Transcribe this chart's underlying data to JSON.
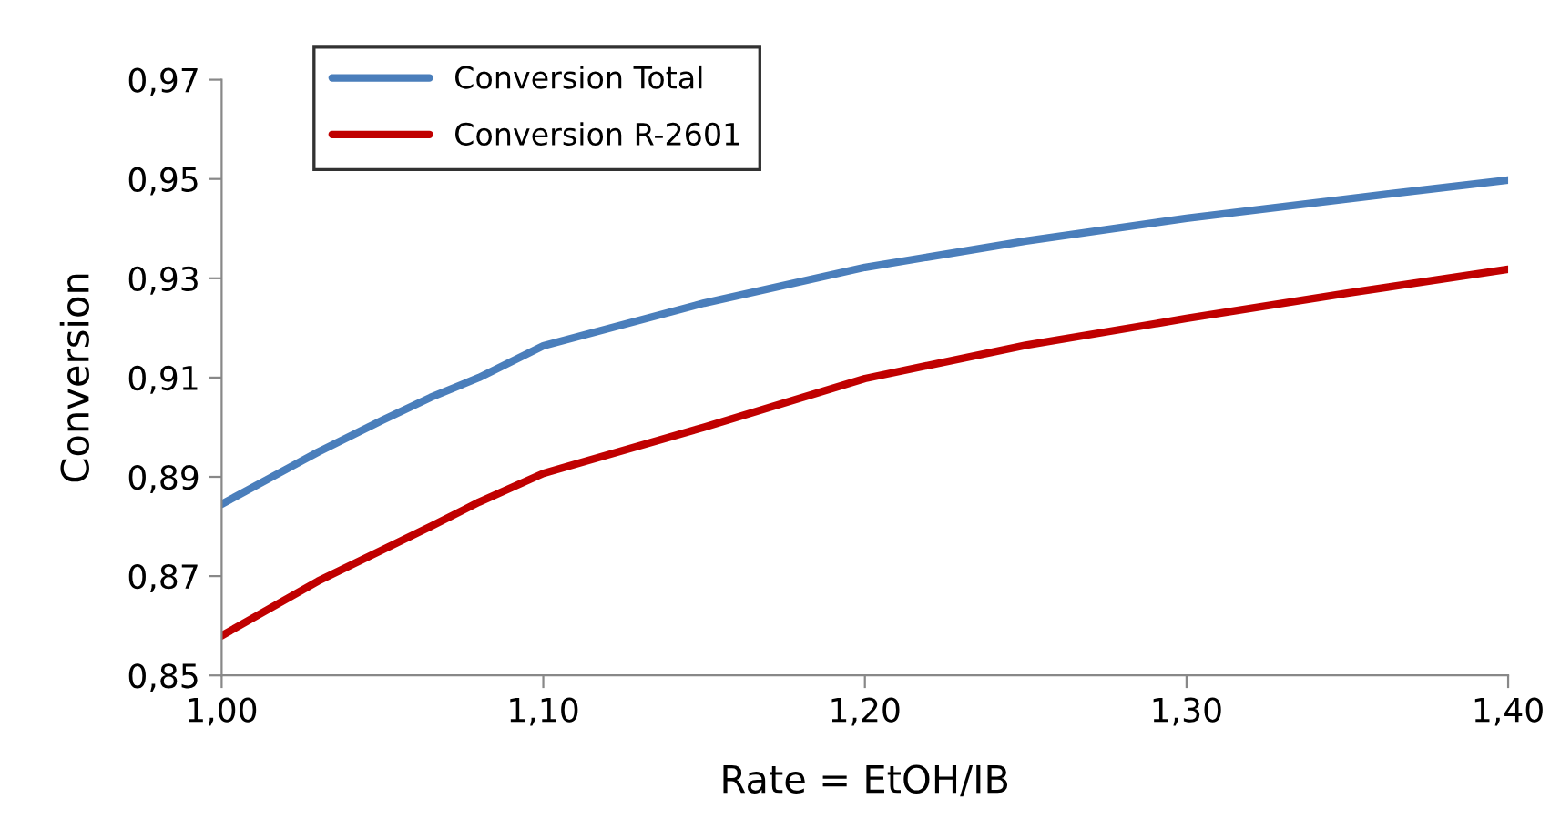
{
  "chart_data": {
    "type": "line",
    "xlabel": "Rate = EtOH/IB",
    "ylabel": "Conversion",
    "x": [
      1.0,
      1.03,
      1.05,
      1.065,
      1.08,
      1.1,
      1.15,
      1.2,
      1.25,
      1.3,
      1.35,
      1.4
    ],
    "series": [
      {
        "name": "Conversion Total",
        "color": "#4a7ebb",
        "values": [
          0.8845,
          0.895,
          0.9014,
          0.906,
          0.91,
          0.9164,
          0.925,
          0.9322,
          0.9375,
          0.9421,
          0.946,
          0.9498
        ]
      },
      {
        "name": "Conversion R-2601",
        "color": "#c00000",
        "values": [
          0.858,
          0.869,
          0.8753,
          0.88,
          0.8849,
          0.8907,
          0.9,
          0.9098,
          0.9165,
          0.9219,
          0.927,
          0.9318
        ]
      }
    ],
    "xlim": [
      1.0,
      1.4
    ],
    "xticks": [
      {
        "value": 1.0,
        "label": "1,00"
      },
      {
        "value": 1.1,
        "label": "1,10"
      },
      {
        "value": 1.2,
        "label": "1,20"
      },
      {
        "value": 1.3,
        "label": "1,30"
      },
      {
        "value": 1.4,
        "label": "1,40"
      }
    ],
    "ylim": [
      0.85,
      0.97
    ],
    "yticks": [
      {
        "value": 0.85,
        "label": "0,85"
      },
      {
        "value": 0.87,
        "label": "0,87"
      },
      {
        "value": 0.89,
        "label": "0,89"
      },
      {
        "value": 0.91,
        "label": "0,91"
      },
      {
        "value": 0.93,
        "label": "0,93"
      },
      {
        "value": 0.95,
        "label": "0,95"
      },
      {
        "value": 0.97,
        "label": "0,97"
      }
    ],
    "grid": false,
    "legend": "top left",
    "marker": "none",
    "line_style": "solid"
  }
}
